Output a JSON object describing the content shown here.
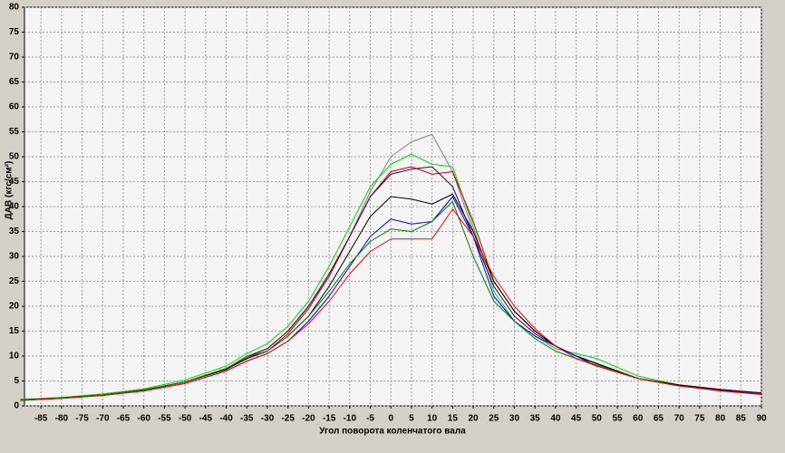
{
  "chart_data": {
    "type": "line",
    "x_label": "Угол поворота коленчатого вала",
    "y_label": "ДАВ (кгс/см²)",
    "x": [
      -90,
      -80,
      -70,
      -60,
      -50,
      -40,
      -35,
      -30,
      -25,
      -20,
      -15,
      -10,
      -5,
      0,
      5,
      10,
      15,
      20,
      25,
      30,
      35,
      40,
      45,
      50,
      60,
      70,
      80,
      90
    ],
    "series": [
      {
        "color": "#808080",
        "values": [
          1.2,
          1.6,
          2.2,
          3.2,
          4.8,
          7.5,
          10,
          11.5,
          15,
          20,
          26,
          34,
          43,
          50,
          53,
          54.5,
          47,
          35,
          25,
          19,
          15,
          12,
          10,
          8.5,
          5.5,
          4,
          3.2,
          2.5
        ]
      },
      {
        "color": "#00dd00",
        "values": [
          1.3,
          1.7,
          2.4,
          3.4,
          5.2,
          8,
          10.5,
          12.5,
          16,
          21,
          28,
          36,
          44,
          48.5,
          50.5,
          48.5,
          48,
          36,
          23,
          17,
          14,
          11.5,
          10.5,
          9.5,
          6,
          4.2,
          3.3,
          2.6
        ]
      },
      {
        "color": "#c00000",
        "values": [
          1.2,
          1.6,
          2.2,
          3.2,
          4.8,
          7.5,
          9.5,
          11,
          14.5,
          19.5,
          26,
          34,
          42,
          47,
          48,
          46.5,
          47,
          37,
          25,
          19,
          15,
          12,
          10,
          8.5,
          5.5,
          4,
          3.2,
          2.5
        ]
      },
      {
        "color": "#400040",
        "values": [
          1.2,
          1.6,
          2.2,
          3.2,
          4.8,
          7.5,
          9.8,
          11.5,
          15,
          20,
          26.5,
          34,
          42,
          46.5,
          47.5,
          48,
          44,
          34,
          24,
          18,
          14.5,
          12,
          10,
          8.5,
          5.5,
          4.2,
          3.3,
          2.6
        ]
      },
      {
        "color": "#000000",
        "values": [
          1.2,
          1.6,
          2.2,
          3.2,
          4.8,
          7.3,
          9.5,
          11,
          14,
          18,
          24,
          31,
          38,
          42,
          41.5,
          40.5,
          42.5,
          35,
          25,
          19,
          15,
          12,
          10,
          8.5,
          5.5,
          4.2,
          3.3,
          2.6
        ]
      },
      {
        "color": "#0000ff",
        "values": [
          1.1,
          1.5,
          2.1,
          3,
          4.5,
          7,
          9,
          10.5,
          13,
          17,
          22,
          28,
          34,
          37.5,
          36.5,
          37,
          42,
          34,
          22,
          17,
          14,
          12,
          10,
          8,
          5.5,
          4,
          3,
          2.3
        ]
      },
      {
        "color": "#008000",
        "values": [
          1.2,
          1.6,
          2.2,
          3.2,
          4.8,
          7.5,
          9.8,
          11,
          14,
          18,
          23,
          28.5,
          33,
          35.5,
          35,
          37,
          41,
          30,
          21,
          17,
          13.5,
          11,
          9.5,
          8.2,
          5.5,
          4,
          3.1,
          2.4
        ]
      },
      {
        "color": "#ff0000",
        "values": [
          1.1,
          1.5,
          2.1,
          3,
          4.5,
          7,
          9,
          10.5,
          13,
          16.5,
          21,
          26.5,
          31,
          33.5,
          33.5,
          33.5,
          39.5,
          34,
          26,
          20,
          15.5,
          12,
          9.5,
          8,
          5.5,
          4,
          3.1,
          2.4
        ]
      }
    ],
    "xlim": [
      -89,
      90
    ],
    "xticks": [
      -85,
      -80,
      -75,
      -70,
      -65,
      -60,
      -55,
      -50,
      -45,
      -40,
      -35,
      -30,
      -25,
      -20,
      -15,
      -10,
      -5,
      0,
      5,
      10,
      15,
      20,
      25,
      30,
      35,
      40,
      45,
      50,
      55,
      60,
      65,
      70,
      75,
      80,
      85,
      90
    ],
    "ylim": [
      0,
      80
    ],
    "yticks": [
      0,
      5,
      10,
      15,
      20,
      25,
      30,
      35,
      40,
      45,
      50,
      55,
      60,
      65,
      70,
      75,
      80
    ],
    "grid": true
  }
}
